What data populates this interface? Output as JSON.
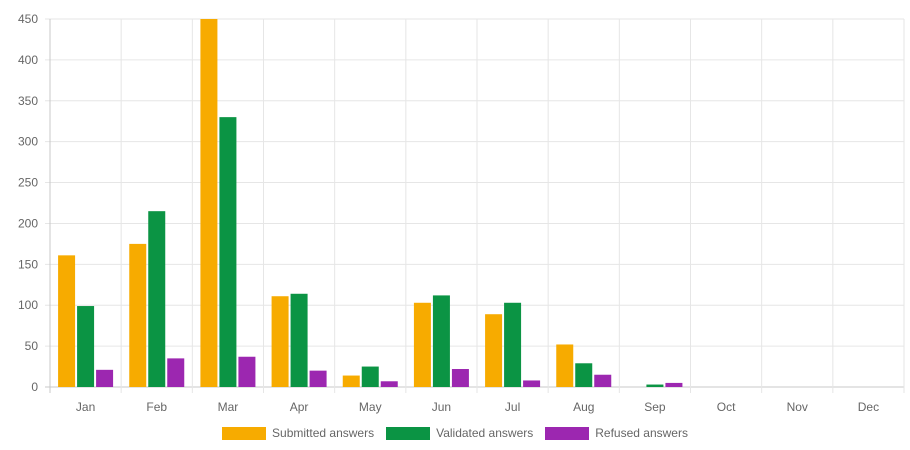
{
  "chart_data": {
    "type": "bar",
    "categories": [
      "Jan",
      "Feb",
      "Mar",
      "Apr",
      "May",
      "Jun",
      "Jul",
      "Aug",
      "Sep",
      "Oct",
      "Nov",
      "Dec"
    ],
    "series": [
      {
        "name": "Submitted answers",
        "color": "#f7ab00",
        "values": [
          161,
          175,
          450,
          111,
          14,
          103,
          89,
          52,
          0,
          0,
          0,
          0
        ]
      },
      {
        "name": "Validated answers",
        "color": "#0b9444",
        "values": [
          99,
          215,
          330,
          114,
          25,
          112,
          103,
          29,
          3,
          0,
          0,
          0
        ]
      },
      {
        "name": "Refused answers",
        "color": "#9c27b0",
        "values": [
          21,
          35,
          37,
          20,
          7,
          22,
          8,
          15,
          5,
          0,
          0,
          0
        ]
      }
    ],
    "yticks": [
      0,
      50,
      100,
      150,
      200,
      250,
      300,
      350,
      400,
      450
    ],
    "ylim": [
      0,
      450
    ],
    "grid": true,
    "legend_position": "bottom",
    "title": "",
    "xlabel": "",
    "ylabel": ""
  }
}
